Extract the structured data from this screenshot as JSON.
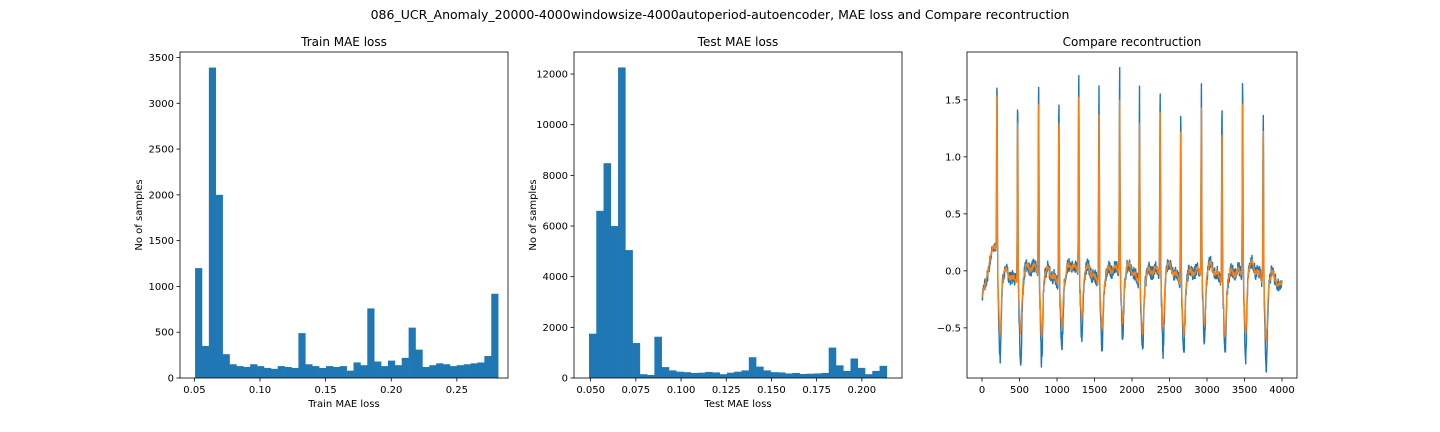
{
  "figure": {
    "suptitle": "086_UCR_Anomaly_20000-4000windowsize-4000autoperiod-autoencoder, MAE loss and Compare recontruction"
  },
  "colors": {
    "bar": "#1f77b4",
    "series_original": "#1f77b4",
    "series_reconstruction": "#ff7f0e"
  },
  "chart_data": [
    {
      "type": "bar",
      "title": "Train MAE loss",
      "xlabel": "Train MAE loss",
      "ylabel": "No of samples",
      "xlim": [
        0.039,
        0.289
      ],
      "ylim": [
        0,
        3560
      ],
      "xticks": [
        0.05,
        0.1,
        0.15,
        0.2,
        0.25
      ],
      "xtick_labels": [
        "0.05",
        "0.10",
        "0.15",
        "0.20",
        "0.25"
      ],
      "yticks": [
        0,
        500,
        1000,
        1500,
        2000,
        2500,
        3000,
        3500
      ],
      "ytick_labels": [
        "0",
        "500",
        "1000",
        "1500",
        "2000",
        "2500",
        "3000",
        "3500"
      ],
      "bin_edges_range": [
        0.0505,
        0.2815
      ],
      "values": [
        1200,
        350,
        3390,
        2000,
        260,
        150,
        130,
        120,
        150,
        130,
        110,
        100,
        130,
        120,
        110,
        490,
        150,
        130,
        110,
        130,
        120,
        130,
        80,
        170,
        140,
        760,
        180,
        130,
        190,
        140,
        220,
        550,
        310,
        120,
        140,
        160,
        150,
        130,
        140,
        150,
        160,
        170,
        240,
        920
      ]
    },
    {
      "type": "bar",
      "title": "Test MAE loss",
      "xlabel": "Test MAE loss",
      "ylabel": "No of samples",
      "xlim": [
        0.0408,
        0.2222
      ],
      "ylim": [
        0,
        12870
      ],
      "xticks": [
        0.05,
        0.075,
        0.1,
        0.125,
        0.15,
        0.175,
        0.2
      ],
      "xtick_labels": [
        "0.050",
        "0.075",
        "0.100",
        "0.125",
        "0.150",
        "0.175",
        "0.200"
      ],
      "yticks": [
        0,
        2000,
        4000,
        6000,
        8000,
        10000,
        12000
      ],
      "ytick_labels": [
        "0",
        "2000",
        "4000",
        "6000",
        "8000",
        "10000",
        "12000"
      ],
      "bin_edges_range": [
        0.0491,
        0.2138
      ],
      "values": [
        1750,
        6600,
        8480,
        6000,
        12260,
        5050,
        1380,
        150,
        120,
        1630,
        430,
        300,
        250,
        230,
        200,
        210,
        240,
        220,
        150,
        210,
        250,
        300,
        820,
        450,
        300,
        230,
        220,
        180,
        200,
        160,
        170,
        180,
        200,
        1200,
        500,
        280,
        770,
        400,
        150,
        280,
        480
      ]
    },
    {
      "type": "line",
      "title": "Compare recontruction",
      "xlabel": "",
      "ylabel": "",
      "xlim": [
        -200,
        4200
      ],
      "ylim": [
        -0.94,
        1.92
      ],
      "xticks": [
        0,
        500,
        1000,
        1500,
        2000,
        2500,
        3000,
        3500,
        4000
      ],
      "xtick_labels": [
        "0",
        "500",
        "1000",
        "1500",
        "2000",
        "2500",
        "3000",
        "3500",
        "4000"
      ],
      "yticks": [
        -0.5,
        0.0,
        0.5,
        1.0,
        1.5
      ],
      "ytick_labels": [
        "−0.5",
        "0.0",
        "0.5",
        "1.0",
        "1.5"
      ],
      "beat_positions": [
        200,
        475,
        755,
        1025,
        1290,
        1560,
        1835,
        2100,
        2375,
        2650,
        2925,
        3200,
        3475,
        3750
      ],
      "series": [
        {
          "role": "original",
          "peak_values": [
            1.62,
            1.65,
            1.72,
            1.67,
            1.8,
            1.78,
            1.84,
            1.72,
            1.64,
            1.56,
            1.65,
            1.54,
            1.77,
            1.56
          ],
          "trough_values": [
            -0.78,
            -0.8,
            -0.82,
            -0.65,
            -0.62,
            -0.62,
            -0.63,
            -0.65,
            -0.76,
            -0.64,
            -0.64,
            -0.64,
            -0.8,
            -0.78
          ]
        },
        {
          "role": "reconstruction",
          "peak_values": [
            1.46,
            1.46,
            1.56,
            1.47,
            1.58,
            1.52,
            1.58,
            1.46,
            1.46,
            1.38,
            1.47,
            1.38,
            1.58,
            1.35
          ],
          "trough_values": [
            -0.55,
            -0.5,
            -0.6,
            -0.45,
            -0.45,
            -0.45,
            -0.48,
            -0.5,
            -0.55,
            -0.5,
            -0.52,
            -0.5,
            -0.6,
            -0.55
          ]
        }
      ]
    }
  ]
}
